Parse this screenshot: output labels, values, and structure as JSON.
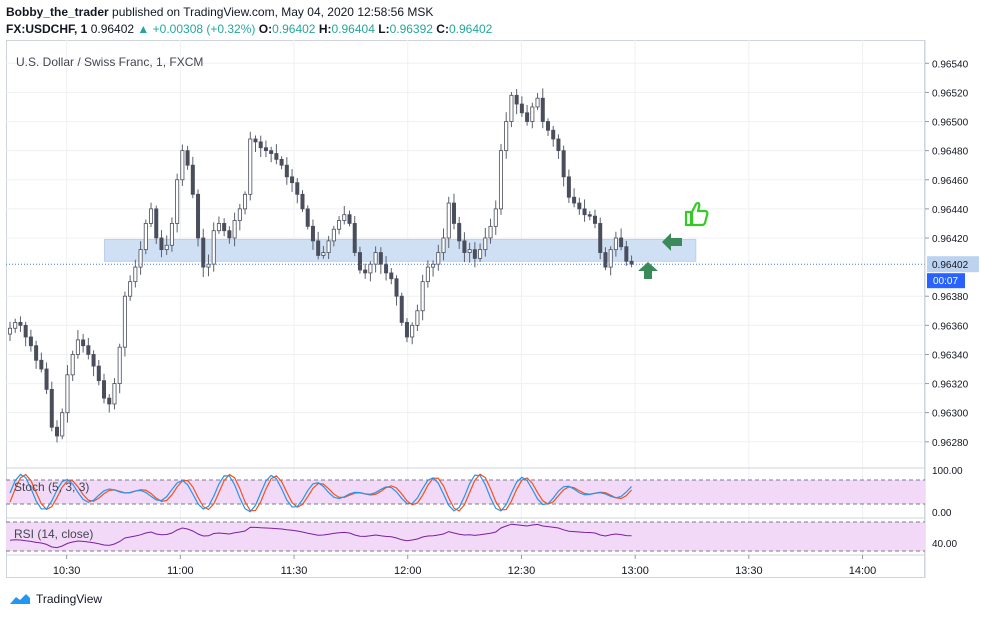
{
  "header": {
    "author": "Bobby_the_trader",
    "published": "published on TradingView.com, May 04, 2020 12:58:56 MSK",
    "symbol": "FX:USDCHF, 1",
    "last": "0.96402",
    "change": "+0.00308 (+0.32%)",
    "o_label": "O:",
    "o": "0.96402",
    "h_label": "H:",
    "h": "0.96404",
    "l_label": "L:",
    "l": "0.96392",
    "c_label": "C:",
    "c": "0.96402"
  },
  "footer": {
    "brand": "TradingView"
  },
  "chart_data": {
    "type": "candlestick",
    "title": "U.S. Dollar / Swiss Franc, 1, FXCM",
    "ylim": [
      0.96262,
      0.96556
    ],
    "yticks": [
      "0.96540",
      "0.96520",
      "0.96500",
      "0.96480",
      "0.96460",
      "0.96440",
      "0.96420",
      "0.96380",
      "0.96360",
      "0.96340",
      "0.96320",
      "0.96300",
      "0.96280"
    ],
    "last_price_label": "0.96402",
    "countdown_label": "00:07",
    "xticks": [
      "10:30",
      "11:00",
      "11:30",
      "12:00",
      "12:30",
      "13:00",
      "13:30",
      "14:00"
    ],
    "x_start_time": "10:14",
    "zone": {
      "from": 0.96404,
      "to": 0.96419,
      "start_time": "10:40",
      "end_time": "13:16",
      "color": "#cfe0f5"
    },
    "close_series": [
      0.96358,
      0.96362,
      0.9636,
      0.96352,
      0.96346,
      0.96336,
      0.9633,
      0.96316,
      0.9629,
      0.96284,
      0.963,
      0.96326,
      0.9634,
      0.9635,
      0.96346,
      0.9634,
      0.96332,
      0.96322,
      0.9631,
      0.96306,
      0.9632,
      0.96345,
      0.9638,
      0.9639,
      0.964,
      0.96412,
      0.9643,
      0.9644,
      0.9642,
      0.96412,
      0.96415,
      0.9643,
      0.9646,
      0.9648,
      0.9647,
      0.9645,
      0.9642,
      0.964,
      0.96402,
      0.96425,
      0.9643,
      0.96425,
      0.9642,
      0.96432,
      0.9644,
      0.9645,
      0.96488,
      0.96486,
      0.96482,
      0.9648,
      0.96478,
      0.96474,
      0.9647,
      0.96462,
      0.96458,
      0.9645,
      0.9644,
      0.96428,
      0.96418,
      0.96408,
      0.9641,
      0.96418,
      0.96426,
      0.96432,
      0.96436,
      0.9643,
      0.9641,
      0.96398,
      0.96396,
      0.96402,
      0.9641,
      0.96402,
      0.96396,
      0.96392,
      0.9638,
      0.96362,
      0.96352,
      0.9636,
      0.9637,
      0.9639,
      0.964,
      0.96402,
      0.9641,
      0.9642,
      0.96444,
      0.9643,
      0.96418,
      0.9641,
      0.96412,
      0.96406,
      0.96412,
      0.9642,
      0.96428,
      0.9644,
      0.9648,
      0.965,
      0.96518,
      0.96512,
      0.96506,
      0.965,
      0.9651,
      0.96516,
      0.965,
      0.96494,
      0.96488,
      0.9648,
      0.96462,
      0.96448,
      0.96444,
      0.9644,
      0.96436,
      0.96435,
      0.9643,
      0.9641,
      0.964,
      0.96412,
      0.9642,
      0.96414,
      0.96404,
      0.96402
    ],
    "legend_marks": "none"
  },
  "stoch": {
    "label": "Stoch (5, 3, 3)",
    "levels": [
      "100.00",
      "0.00"
    ],
    "k_color": "#2196f3",
    "d_color": "#f4511e",
    "bg": "#f2d9f7"
  },
  "rsi": {
    "label": "RSI (14, close)",
    "level": "40.00",
    "line_color": "#7b1fa2",
    "bg": "#f2d9f7"
  },
  "annotations": [
    {
      "name": "thumbs-up-icon",
      "color": "#34c924"
    },
    {
      "name": "arrow-up-icon",
      "color": "#3b8a5a"
    },
    {
      "name": "arrow-left-icon",
      "color": "#3b8a5a"
    }
  ]
}
